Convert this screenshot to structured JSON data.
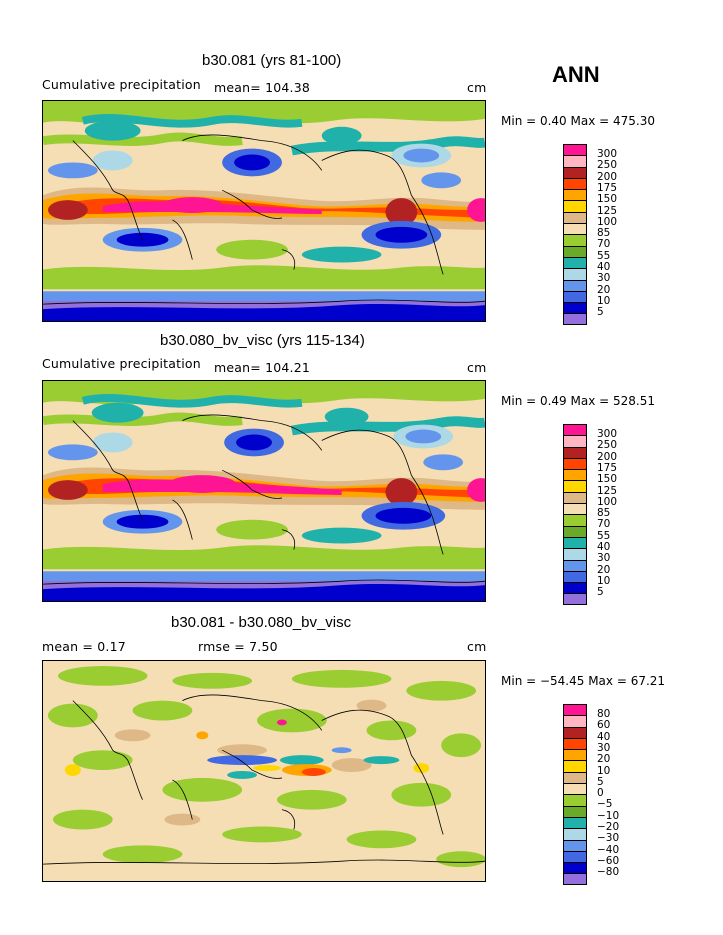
{
  "season": "ANN",
  "panels": [
    {
      "title": "b30.081 (yrs 81-100)",
      "left_label": "Cumulative precipitation",
      "mid_label": "mean= 104.38",
      "unit": "cm",
      "minmax": "Min =   0.40 Max = 475.30",
      "legend": {
        "labels": [
          "300",
          "250",
          "200",
          "175",
          "150",
          "125",
          "100",
          "85",
          "70",
          "55",
          "40",
          "30",
          "20",
          "10",
          "5"
        ],
        "colors": [
          "#ff1493",
          "#ffb6c1",
          "#b22222",
          "#ff4500",
          "#ffa500",
          "#ffd700",
          "#deb887",
          "#f5deb3",
          "#9acd32",
          "#6aaa2a",
          "#20b2aa",
          "#add8e6",
          "#6495ed",
          "#4169e1",
          "#0000cd",
          "#9370db"
        ]
      }
    },
    {
      "title": "b30.080_bv_visc (yrs 115-134)",
      "left_label": "Cumulative precipitation",
      "mid_label": "mean= 104.21",
      "unit": "cm",
      "minmax": "Min =   0.49 Max = 528.51",
      "legend": {
        "labels": [
          "300",
          "250",
          "200",
          "175",
          "150",
          "125",
          "100",
          "85",
          "70",
          "55",
          "40",
          "30",
          "20",
          "10",
          "5"
        ],
        "colors": [
          "#ff1493",
          "#ffb6c1",
          "#b22222",
          "#ff4500",
          "#ffa500",
          "#ffd700",
          "#deb887",
          "#f5deb3",
          "#9acd32",
          "#6aaa2a",
          "#20b2aa",
          "#add8e6",
          "#6495ed",
          "#4169e1",
          "#0000cd",
          "#9370db"
        ]
      }
    },
    {
      "title": "b30.081 - b30.080_bv_visc",
      "left_label": "mean =   0.17",
      "mid_label": "rmse =   7.50",
      "unit": "cm",
      "minmax": "Min = −54.45 Max =  67.21",
      "legend": {
        "labels": [
          "80",
          "60",
          "40",
          "30",
          "20",
          "10",
          "5",
          "0",
          "−5",
          "−10",
          "−20",
          "−30",
          "−40",
          "−60",
          "−80"
        ],
        "colors": [
          "#ff1493",
          "#ffb6c1",
          "#b22222",
          "#ff4500",
          "#ffa500",
          "#ffd700",
          "#deb887",
          "#f5deb3",
          "#9acd32",
          "#6aaa2a",
          "#20b2aa",
          "#add8e6",
          "#6495ed",
          "#4169e1",
          "#0000cd",
          "#9370db"
        ]
      }
    }
  ]
}
